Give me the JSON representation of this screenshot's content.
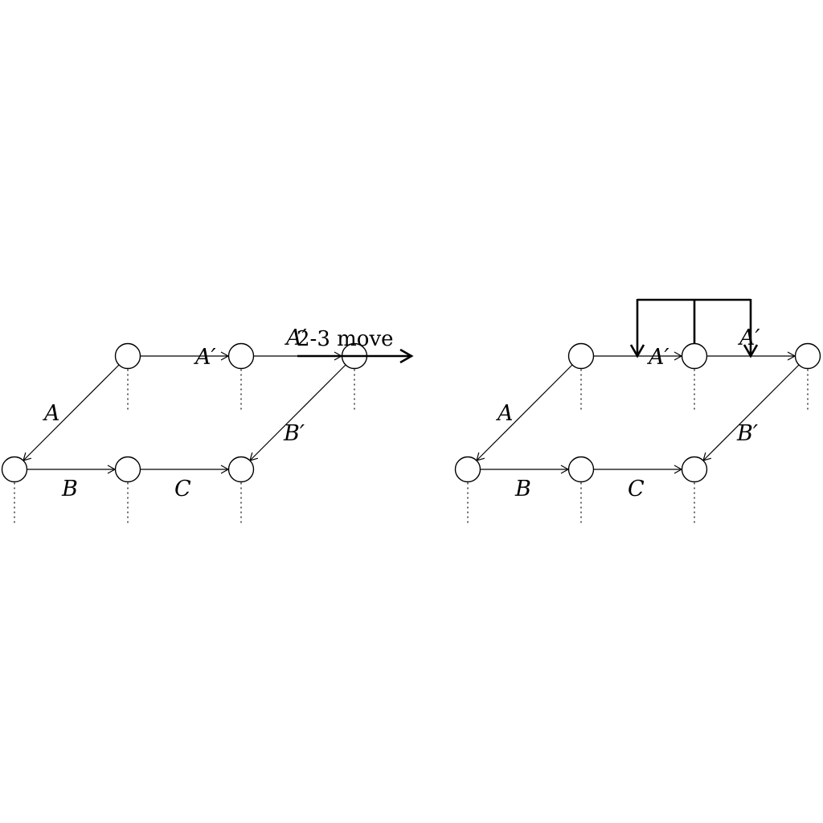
{
  "left_diagram": {
    "caption": "2-3 move",
    "edge_labels": {
      "A": "A",
      "A_prime_1": "A′",
      "A_prime_2": "A′",
      "B": "B",
      "C": "C",
      "B_prime": "B′"
    }
  },
  "right_diagram": {
    "edge_labels": {
      "A": "A",
      "A_prime_1": "A′",
      "A_prime_2": "A′",
      "B": "B",
      "C": "C",
      "B_prime": "B′"
    }
  }
}
